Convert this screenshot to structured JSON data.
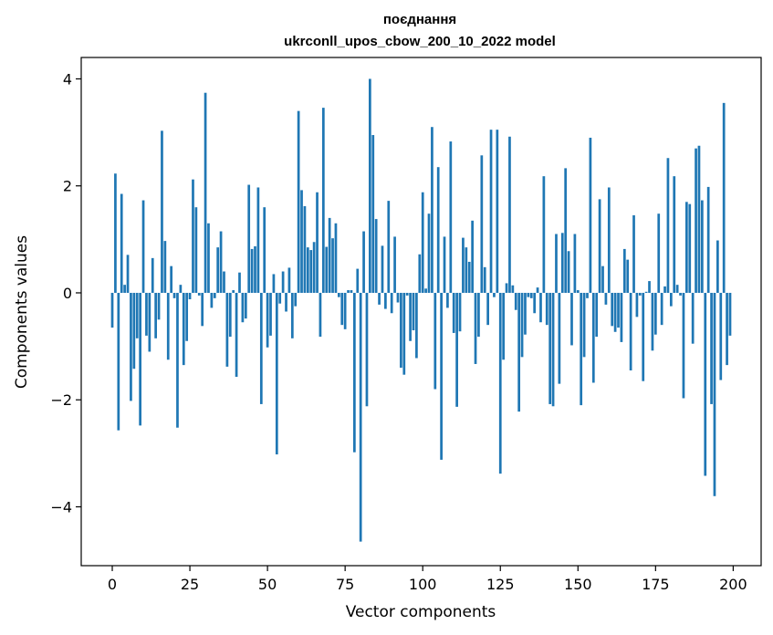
{
  "chart_data": {
    "type": "bar",
    "title_line1": "поєднання",
    "title_line2": "ukrconll_upos_cbow_200_10_2022 model",
    "xlabel": "Vector components",
    "ylabel": "Components values",
    "xlim": [
      -10,
      209
    ],
    "ylim": [
      -5.1,
      4.4
    ],
    "xticks": [
      0,
      25,
      50,
      75,
      100,
      125,
      150,
      175,
      200
    ],
    "yticks": [
      -4,
      -2,
      0,
      2,
      4
    ],
    "ytick_labels": [
      "−4",
      "−2",
      "0",
      "2",
      "4"
    ],
    "grid": false,
    "bar_color": "#1f77b4",
    "x": [
      0,
      1,
      2,
      3,
      4,
      5,
      6,
      7,
      8,
      9,
      10,
      11,
      12,
      13,
      14,
      15,
      16,
      17,
      18,
      19,
      20,
      21,
      22,
      23,
      24,
      25,
      26,
      27,
      28,
      29,
      30,
      31,
      32,
      33,
      34,
      35,
      36,
      37,
      38,
      39,
      40,
      41,
      42,
      43,
      44,
      45,
      46,
      47,
      48,
      49,
      50,
      51,
      52,
      53,
      54,
      55,
      56,
      57,
      58,
      59,
      60,
      61,
      62,
      63,
      64,
      65,
      66,
      67,
      68,
      69,
      70,
      71,
      72,
      73,
      74,
      75,
      76,
      77,
      78,
      79,
      80,
      81,
      82,
      83,
      84,
      85,
      86,
      87,
      88,
      89,
      90,
      91,
      92,
      93,
      94,
      95,
      96,
      97,
      98,
      99,
      100,
      101,
      102,
      103,
      104,
      105,
      106,
      107,
      108,
      109,
      110,
      111,
      112,
      113,
      114,
      115,
      116,
      117,
      118,
      119,
      120,
      121,
      122,
      123,
      124,
      125,
      126,
      127,
      128,
      129,
      130,
      131,
      132,
      133,
      134,
      135,
      136,
      137,
      138,
      139,
      140,
      141,
      142,
      143,
      144,
      145,
      146,
      147,
      148,
      149,
      150,
      151,
      152,
      153,
      154,
      155,
      156,
      157,
      158,
      159,
      160,
      161,
      162,
      163,
      164,
      165,
      166,
      167,
      168,
      169,
      170,
      171,
      172,
      173,
      174,
      175,
      176,
      177,
      178,
      179,
      180,
      181,
      182,
      183,
      184,
      185,
      186,
      187,
      188,
      189,
      190,
      191,
      192,
      193,
      194,
      195,
      196,
      197,
      198,
      199
    ],
    "values": [
      -0.65,
      2.23,
      -2.57,
      1.85,
      0.15,
      0.71,
      -2.02,
      -1.42,
      -0.85,
      -2.48,
      1.73,
      -0.8,
      -1.1,
      0.65,
      -0.85,
      -0.5,
      3.03,
      0.97,
      -1.25,
      0.5,
      -0.1,
      -2.52,
      0.15,
      -1.35,
      -0.9,
      -0.12,
      2.12,
      1.6,
      -0.05,
      -0.62,
      3.74,
      1.3,
      -0.28,
      -0.1,
      0.85,
      1.15,
      0.4,
      -1.38,
      -0.82,
      0.05,
      -1.57,
      0.38,
      -0.55,
      -0.48,
      2.02,
      0.82,
      0.87,
      1.97,
      -2.08,
      1.6,
      -1.02,
      -0.8,
      0.35,
      -3.02,
      -0.2,
      0.4,
      -0.35,
      0.47,
      -0.85,
      -0.25,
      3.4,
      1.92,
      1.62,
      0.85,
      0.8,
      0.95,
      1.88,
      -0.82,
      3.46,
      0.86,
      1.4,
      1.02,
      1.3,
      -0.08,
      -0.6,
      -0.68,
      0.05,
      0.05,
      -2.98,
      0.45,
      -4.65,
      1.15,
      -2.12,
      4.0,
      2.95,
      1.38,
      -0.22,
      0.88,
      -0.3,
      1.72,
      -0.38,
      1.05,
      -0.18,
      -1.4,
      -1.53,
      -0.05,
      -0.9,
      -0.7,
      -1.22,
      0.72,
      1.88,
      0.08,
      1.48,
      3.1,
      -1.8,
      2.35,
      -3.12,
      1.05,
      -0.28,
      2.83,
      -0.75,
      -2.13,
      -0.72,
      1.03,
      0.85,
      0.58,
      1.35,
      -1.33,
      -0.82,
      2.57,
      0.48,
      -0.6,
      3.05,
      -0.08,
      3.05,
      -3.38,
      -1.25,
      0.18,
      2.92,
      0.14,
      -0.32,
      -2.22,
      -1.2,
      -0.78,
      -0.08,
      -0.1,
      -0.38,
      0.1,
      -0.55,
      2.18,
      -0.6,
      -2.08,
      -2.12,
      1.1,
      -1.7,
      1.12,
      2.33,
      0.78,
      -0.98,
      1.1,
      0.05,
      -2.1,
      -1.2,
      -0.1,
      2.9,
      -1.68,
      -0.82,
      1.75,
      0.5,
      -0.22,
      1.97,
      -0.62,
      -0.73,
      -0.65,
      -0.92,
      0.82,
      0.62,
      -1.45,
      1.45,
      -0.45,
      -0.05,
      -1.65,
      0.02,
      0.22,
      -1.08,
      -0.78,
      1.48,
      -0.6,
      0.12,
      2.52,
      -0.25,
      2.18,
      0.15,
      -0.05,
      -1.97,
      1.7,
      1.66,
      -0.95,
      2.7,
      2.75,
      1.73,
      -3.42,
      1.98,
      -2.08,
      -3.8,
      0.98,
      -1.63,
      3.55,
      -1.35,
      -0.8
    ]
  }
}
